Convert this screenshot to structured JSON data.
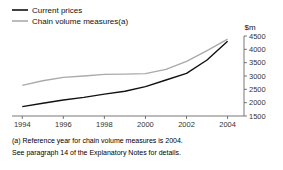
{
  "chart_data": {
    "type": "line",
    "ylabel": "$m",
    "x": [
      1994,
      1995,
      1996,
      1997,
      1998,
      1999,
      2000,
      2001,
      2002,
      2003,
      2004
    ],
    "series": [
      {
        "name": "Current prices",
        "color": "#111111",
        "values": [
          1850,
          1980,
          2100,
          2200,
          2320,
          2430,
          2600,
          2850,
          3100,
          3600,
          4300
        ]
      },
      {
        "name": "Chain volume measures(a)",
        "color": "#aaaaaa",
        "values": [
          2650,
          2820,
          2950,
          3000,
          3060,
          3070,
          3090,
          3250,
          3550,
          3950,
          4380
        ]
      }
    ],
    "xlim": [
      1993.5,
      2004.8
    ],
    "xticks": [
      1994,
      1996,
      1998,
      2000,
      2002,
      2004
    ],
    "ylim": [
      1500,
      4500
    ],
    "yticks": [
      1500,
      2000,
      2500,
      3000,
      3500,
      4000,
      4500
    ],
    "annotations": [
      "(a) Reference year for chain volume measures is 2004.",
      "See paragraph 14 of the Explanatory Notes for details."
    ],
    "legend": "top",
    "grid": false
  }
}
